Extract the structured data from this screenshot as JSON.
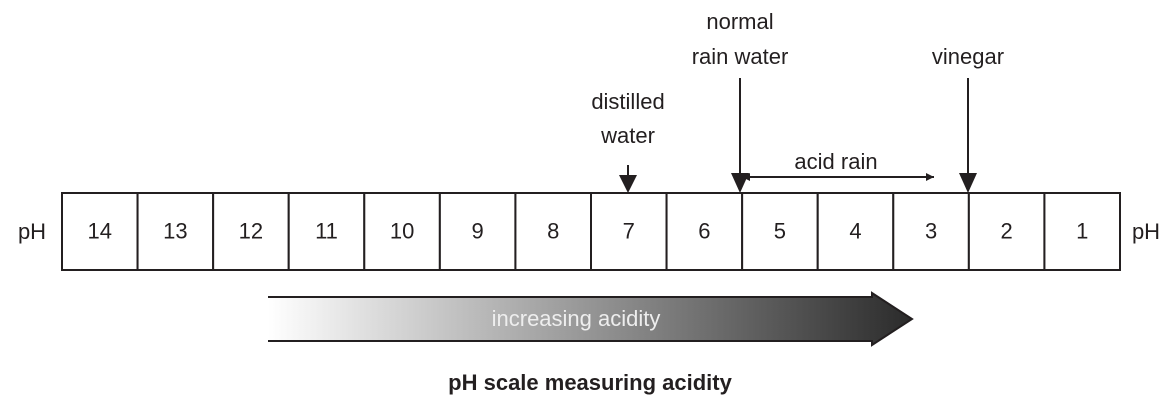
{
  "scale": {
    "label_left": "pH",
    "label_right": "pH",
    "cells": [
      14,
      13,
      12,
      11,
      10,
      9,
      8,
      7,
      6,
      5,
      4,
      3,
      2,
      1
    ]
  },
  "annotations": [
    {
      "lines": [
        "distilled",
        "water"
      ]
    },
    {
      "lines": [
        "normal",
        "rain water"
      ]
    },
    {
      "lines": [
        "vinegar"
      ]
    }
  ],
  "range_arrow": {
    "label": "acid rain"
  },
  "trend_arrow": {
    "label": "increasing acidity"
  },
  "caption": "pH scale measuring acidity"
}
